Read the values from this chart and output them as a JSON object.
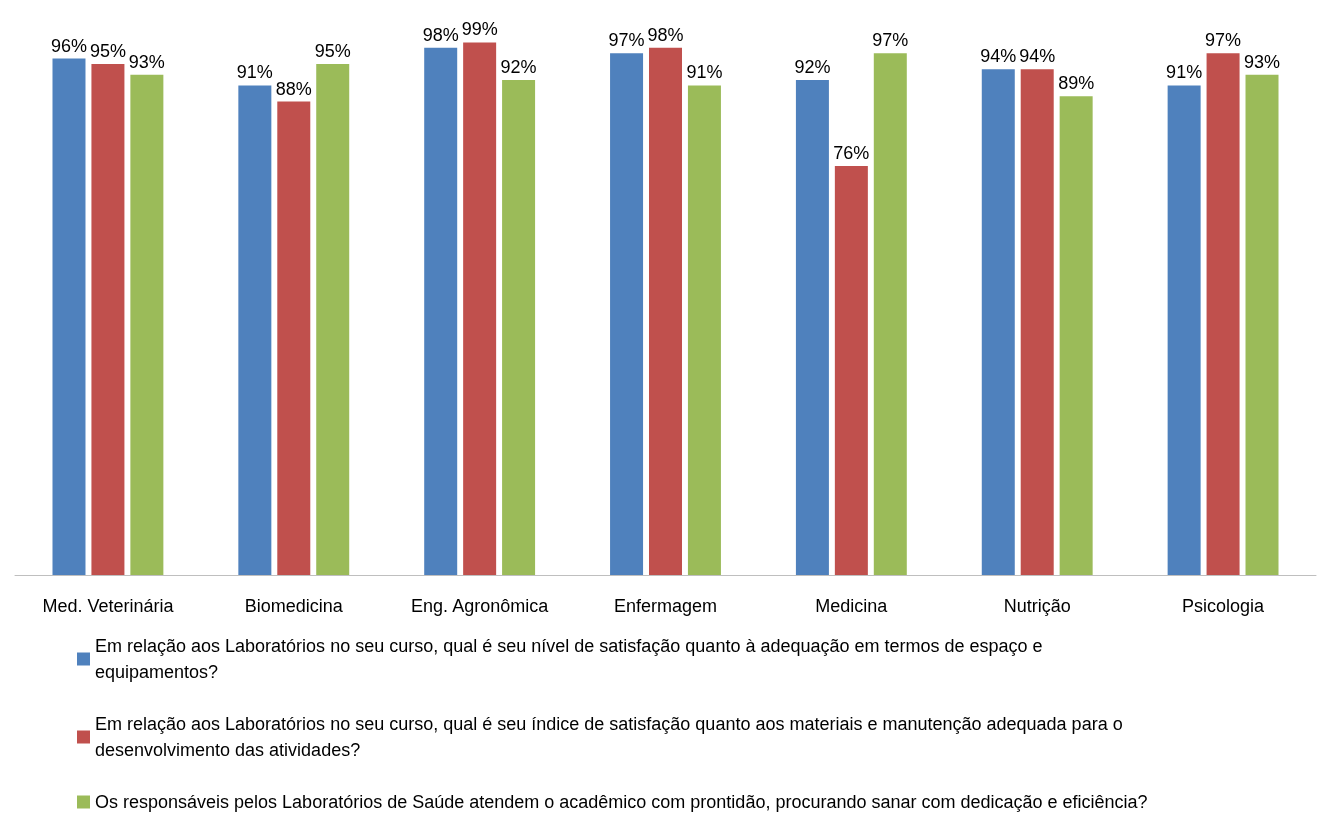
{
  "chart_data": {
    "type": "bar",
    "categories": [
      "Med. Veterinária",
      "Biomedicina",
      "Eng. Agronômica",
      "Enfermagem",
      "Medicina",
      "Nutrição",
      "Psicologia"
    ],
    "series": [
      {
        "name": "Em relação aos Laboratórios no seu curso, qual é seu nível de satisfação quanto à adequação em termos de espaço e equipamentos?",
        "color": "#4f81bd",
        "values": [
          96,
          91,
          98,
          97,
          92,
          94,
          91
        ],
        "value_labels": [
          "96%",
          "91%",
          "98%",
          "97%",
          "92%",
          "94%",
          "91%"
        ]
      },
      {
        "name": "Em relação aos Laboratórios no seu curso, qual é seu índice de satisfação quanto aos materiais e manutenção adequada para o desenvolvimento das atividades?",
        "color": "#c0504d",
        "values": [
          95,
          88,
          99,
          98,
          76,
          94,
          97
        ],
        "value_labels": [
          "95%",
          "88%",
          "99%",
          "98%",
          "76%",
          "94%",
          "97%"
        ]
      },
      {
        "name": "Os responsáveis pelos Laboratórios de Saúde atendem o acadêmico com prontidão, procurando sanar com dedicação e eficiência?",
        "color": "#9bbb59",
        "values": [
          93,
          95,
          92,
          91,
          97,
          89,
          93
        ],
        "value_labels": [
          "93%",
          "95%",
          "92%",
          "91%",
          "97%",
          "89%",
          "93%"
        ]
      }
    ],
    "legend": "bottom",
    "tick_labels": "x"
  }
}
